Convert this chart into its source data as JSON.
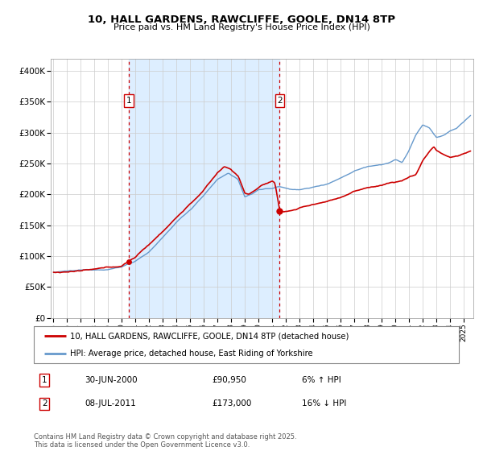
{
  "title": "10, HALL GARDENS, RAWCLIFFE, GOOLE, DN14 8TP",
  "subtitle": "Price paid vs. HM Land Registry's House Price Index (HPI)",
  "legend_line1": "10, HALL GARDENS, RAWCLIFFE, GOOLE, DN14 8TP (detached house)",
  "legend_line2": "HPI: Average price, detached house, East Riding of Yorkshire",
  "transaction1_date": "30-JUN-2000",
  "transaction1_price": "£90,950",
  "transaction1_hpi": "6% ↑ HPI",
  "transaction2_date": "08-JUL-2011",
  "transaction2_price": "£173,000",
  "transaction2_hpi": "16% ↓ HPI",
  "transaction1_x": 2000.5,
  "transaction1_y": 90950,
  "transaction2_x": 2011.54,
  "transaction2_y": 173000,
  "red_line_color": "#cc0000",
  "blue_line_color": "#6699cc",
  "vline_color": "#cc0000",
  "grid_color": "#cccccc",
  "shade_color": "#ddeeff",
  "ylim": [
    0,
    420000
  ],
  "xlim_start": 1994.8,
  "xlim_end": 2025.7,
  "yticks": [
    0,
    50000,
    100000,
    150000,
    200000,
    250000,
    300000,
    350000,
    400000
  ],
  "ytick_labels": [
    "£0",
    "£50K",
    "£100K",
    "£150K",
    "£200K",
    "£250K",
    "£300K",
    "£350K",
    "£400K"
  ],
  "footer": "Contains HM Land Registry data © Crown copyright and database right 2025.\nThis data is licensed under the Open Government Licence v3.0."
}
